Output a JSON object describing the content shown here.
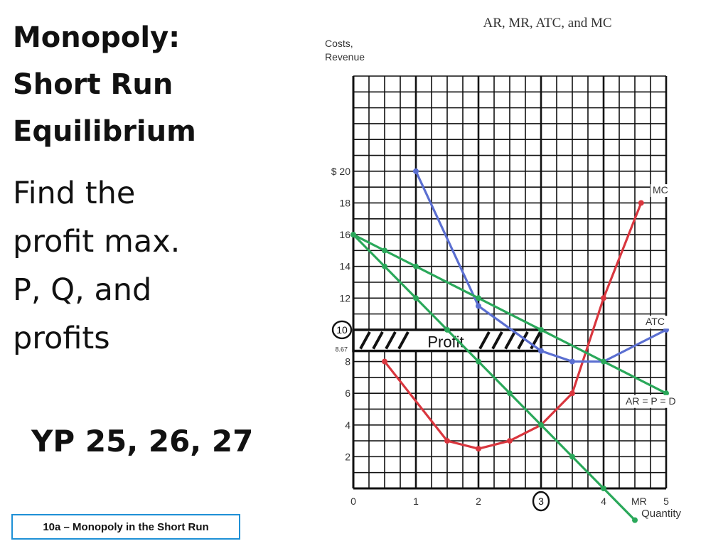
{
  "slide": {
    "title_lines": [
      "Monopoly:",
      "Short Run",
      "Equilibrium"
    ],
    "prompt_lines": [
      "Find the",
      "profit max.",
      "P, Q, and",
      "profits"
    ],
    "homework": "YP 25, 26, 27",
    "footer": "10a – Monopoly in the Short Run"
  },
  "chart_data": {
    "type": "line",
    "title": "AR, MR, ATC, and MC",
    "ylabel": "Costs, Revenue",
    "xlabel": "Quantity",
    "xlim": [
      0,
      5
    ],
    "ylim": [
      0,
      26
    ],
    "x_ticks": [
      "0",
      "1",
      "2",
      "3",
      "4",
      "5"
    ],
    "y_ticks": [
      "2",
      "4",
      "6",
      "8",
      "10",
      "12",
      "14",
      "16",
      "18",
      "$ 20"
    ],
    "y_tick_values": [
      2,
      4,
      6,
      8,
      10,
      12,
      14,
      16,
      18,
      20
    ],
    "extra_y_tick": {
      "label": "8.67",
      "value": 8.67
    },
    "grid": true,
    "series": [
      {
        "name": "MC",
        "color": "#d9363e",
        "x": [
          0.5,
          1.5,
          2.0,
          2.5,
          3.0,
          3.5,
          4.0,
          4.6
        ],
        "y": [
          8,
          3,
          2.5,
          3,
          4,
          6,
          12,
          18
        ],
        "label": "MC"
      },
      {
        "name": "ATC",
        "color": "#5b6fd1",
        "x": [
          1.0,
          2.0,
          3.0,
          3.5,
          4.0,
          5.0
        ],
        "y": [
          20,
          11.5,
          8.67,
          8,
          8,
          10
        ],
        "label": "ATC"
      },
      {
        "name": "AR = P = D",
        "color": "#2aa85a",
        "x": [
          0,
          0.5,
          1.0,
          2.0,
          3.0,
          4.0,
          5.0
        ],
        "y": [
          16,
          15,
          14,
          12,
          10,
          8,
          6
        ],
        "label": "AR = P = D"
      },
      {
        "name": "MR",
        "color": "#2aa85a",
        "x": [
          0,
          0.5,
          1.0,
          1.5,
          2.0,
          2.5,
          3.0,
          3.5,
          4.0,
          4.5
        ],
        "y": [
          16,
          14,
          12,
          10,
          8,
          6,
          4,
          2,
          0,
          -2
        ],
        "label": "MR"
      }
    ],
    "annotations": {
      "profit_box": {
        "label": "Profit",
        "x_start": 0,
        "x_end": 3,
        "y_top": 10,
        "y_bottom": 8.67
      },
      "circled_price": "10",
      "circled_quantity": "3"
    }
  }
}
